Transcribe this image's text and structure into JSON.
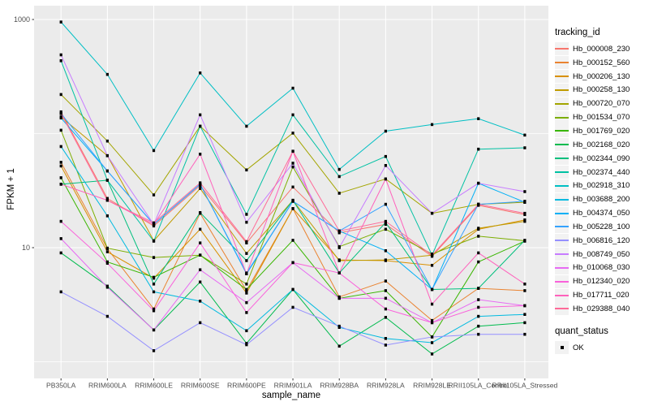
{
  "chart_data": {
    "type": "line",
    "title": "",
    "xlabel": "sample_name",
    "ylabel": "FPKM + 1",
    "x_categories": [
      "PB350LA",
      "RRIM600LA",
      "RRIM600LE",
      "RRIM600SE",
      "RRIM600PE",
      "RRIM901LA",
      "RRIM928BA",
      "RRIM928LA",
      "RRIM928LE",
      "RRII105LA_Control",
      "RRII105LA_Stressed"
    ],
    "y_scale": "log10",
    "y_major_ticks": [
      {
        "label": "1000",
        "value": 1000
      },
      {
        "label": "10",
        "value": 10
      }
    ],
    "y_minor_gridlines": [
      100,
      1
    ],
    "ylim": [
      0.8,
      1300
    ],
    "grid": "on",
    "legend_position": "right",
    "legend_title": "tracking_id",
    "legend2_title": "quant_status",
    "legend2_items": [
      "OK"
    ],
    "point_shape": "square",
    "point_color": "#000000",
    "series": [
      {
        "name": "Hb_000008_230",
        "color": "#F8766D",
        "values": [
          155,
          27,
          15.5,
          35,
          11,
          34,
          13.5,
          16,
          8.4,
          23.5,
          19.5
        ]
      },
      {
        "name": "Hb_000152_560",
        "color": "#EA8331",
        "values": [
          56,
          9.8,
          2.9,
          20,
          4.2,
          22,
          3.7,
          5.1,
          2.3,
          4.4,
          4.2
        ]
      },
      {
        "name": "Hb_000206_130",
        "color": "#D89000",
        "values": [
          52,
          9.2,
          5.4,
          14.5,
          4.0,
          22,
          7.8,
          7.7,
          7.0,
          14.5,
          17.5
        ]
      },
      {
        "name": "Hb_000258_130",
        "color": "#C09B00",
        "values": [
          140,
          64,
          11.5,
          33,
          8.9,
          26,
          7.7,
          7.8,
          8.6,
          14.8,
          17
        ]
      },
      {
        "name": "Hb_000720_070",
        "color": "#A3A500",
        "values": [
          220,
          86,
          29,
          116,
          48,
          101,
          30,
          40,
          20,
          24,
          25
        ]
      },
      {
        "name": "Hb_001534_070",
        "color": "#7CAE00",
        "values": [
          107,
          9.9,
          8.2,
          8.6,
          4.8,
          51,
          10.2,
          14.5,
          8.8,
          12.6,
          11.5
        ]
      },
      {
        "name": "Hb_001769_020",
        "color": "#39B600",
        "values": [
          41,
          7.5,
          5.5,
          8.6,
          4.3,
          11.6,
          3.6,
          4.2,
          1.65,
          7.5,
          11.4
        ]
      },
      {
        "name": "Hb_002168_020",
        "color": "#00BB4E",
        "values": [
          9.0,
          4.6,
          1.9,
          5.0,
          1.45,
          4.3,
          1.37,
          2.45,
          1.17,
          2.05,
          2.2
        ]
      },
      {
        "name": "Hb_002344_090",
        "color": "#00BF7D",
        "values": [
          36,
          39,
          4.8,
          20.3,
          7.7,
          26,
          6.0,
          16.6,
          4.3,
          4.4,
          11.6
        ]
      },
      {
        "name": "Hb_002374_440",
        "color": "#00C1A3",
        "values": [
          435,
          39,
          11.4,
          116,
          19.6,
          146,
          42,
          63,
          8.6,
          73,
          75
        ]
      },
      {
        "name": "Hb_002918_310",
        "color": "#00BFC4",
        "values": [
          950,
          330,
          71,
          340,
          116,
          250,
          48.5,
          105,
          120,
          135,
          97
        ]
      },
      {
        "name": "Hb_003688_200",
        "color": "#00BAE0",
        "values": [
          77,
          19,
          4.1,
          3.4,
          1.87,
          4.3,
          2.0,
          1.6,
          1.47,
          2.5,
          2.6
        ]
      },
      {
        "name": "Hb_004374_050",
        "color": "#00B0F6",
        "values": [
          137,
          47,
          16,
          36,
          5.9,
          25.5,
          14,
          9.4,
          4.3,
          36.7,
          25
        ]
      },
      {
        "name": "Hb_005228_100",
        "color": "#35A2FF",
        "values": [
          150,
          47,
          16,
          36,
          6.0,
          25.5,
          14,
          24,
          4.3,
          24,
          25.5
        ]
      },
      {
        "name": "Hb_006816_120",
        "color": "#9590FF",
        "values": [
          4.1,
          2.5,
          1.25,
          2.2,
          1.41,
          3.0,
          2.05,
          1.4,
          1.65,
          1.74,
          1.74
        ]
      },
      {
        "name": "Hb_008749_050",
        "color": "#C77CFF",
        "values": [
          490,
          64,
          16,
          146,
          16.7,
          55,
          10,
          52.5,
          20,
          36.7,
          31
        ]
      },
      {
        "name": "Hb_010068_030",
        "color": "#E76BF3",
        "values": [
          12,
          4.5,
          1.9,
          6.4,
          3.3,
          7.4,
          3.6,
          3.6,
          2.2,
          3.5,
          3.1
        ]
      },
      {
        "name": "Hb_012340_020",
        "color": "#FA62DB",
        "values": [
          17,
          7.3,
          2.8,
          11,
          2.7,
          7.4,
          6.0,
          2.9,
          2.2,
          3.0,
          3.1
        ]
      },
      {
        "name": "Hb_017711_020",
        "color": "#FF62BC",
        "values": [
          36,
          26,
          16,
          66,
          5.9,
          70,
          6.0,
          40,
          3.2,
          9.0,
          4.8
        ]
      },
      {
        "name": "Hb_029388_040",
        "color": "#FF6A98",
        "values": [
          150,
          26,
          16.5,
          37,
          11.3,
          70,
          14,
          17,
          8.6,
          24,
          20
        ]
      }
    ],
    "style": {
      "panel_bg": "#EBEBEB",
      "grid_color": "#FFFFFF",
      "tick_text_color": "#4D4D4D",
      "tick_mark_color": "#333333",
      "axis_title_color": "#000000",
      "legend_key_bg": "#F2F2F2",
      "background": "#FFFFFF"
    }
  }
}
